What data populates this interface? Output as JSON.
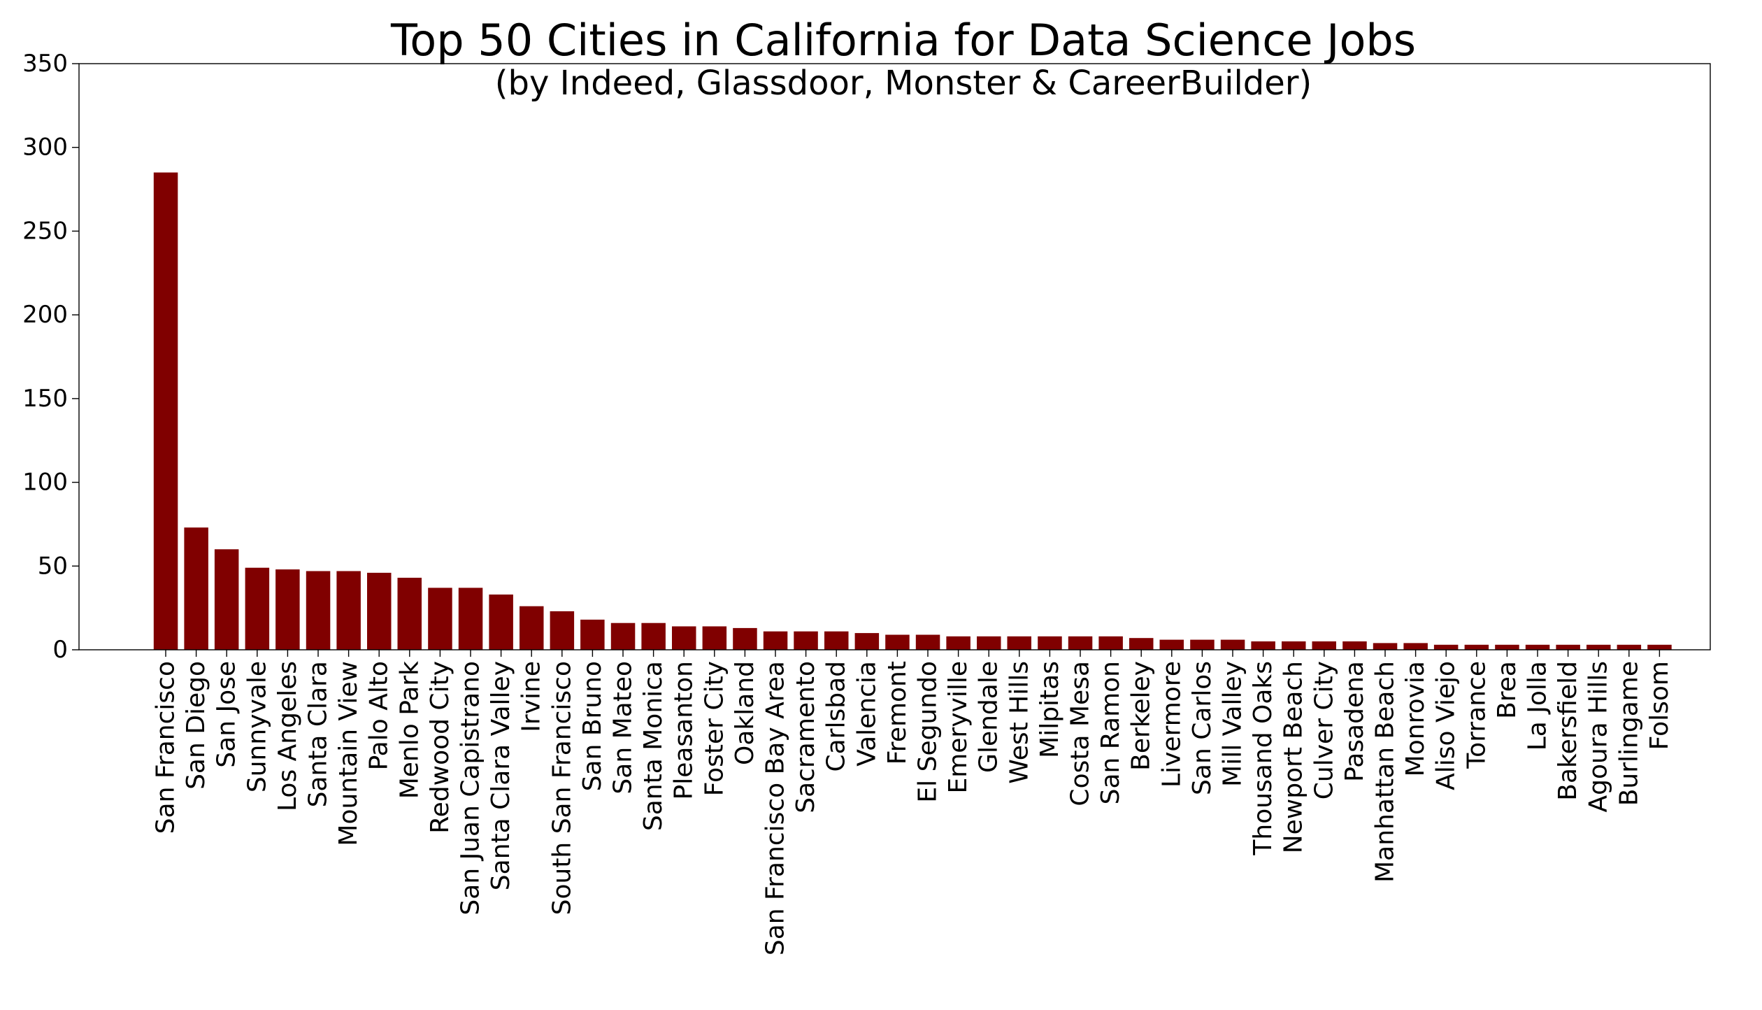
{
  "chart_data": {
    "type": "bar",
    "title": "Top 50 Cities in California for Data Science Jobs",
    "subtitle": "(by Indeed, Glassdoor, Monster & CareerBuilder)",
    "xlabel": "",
    "ylabel": "",
    "ylim": [
      0,
      350
    ],
    "yticks": [
      0,
      50,
      100,
      150,
      200,
      250,
      300,
      350
    ],
    "grid": false,
    "bar_color": "#800000",
    "categories": [
      "San Francisco",
      "San Diego",
      "San Jose",
      "Sunnyvale",
      "Los Angeles",
      "Santa Clara",
      "Mountain View",
      "Palo Alto",
      "Menlo Park",
      "Redwood City",
      "San Juan Capistrano",
      "Santa Clara Valley",
      "Irvine",
      "South San Francisco",
      "San Bruno",
      "San Mateo",
      "Santa Monica",
      "Pleasanton",
      "Foster City",
      "Oakland",
      "San Francisco Bay Area",
      "Sacramento",
      "Carlsbad",
      "Valencia",
      "Fremont",
      "El Segundo",
      "Emeryville",
      "Glendale",
      "West Hills",
      "Milpitas",
      "Costa Mesa",
      "San Ramon",
      "Berkeley",
      "Livermore",
      "San Carlos",
      "Mill Valley",
      "Thousand Oaks",
      "Newport Beach",
      "Culver City",
      "Pasadena",
      "Manhattan Beach",
      "Monrovia",
      "Aliso Viejo",
      "Torrance",
      "Brea",
      "La Jolla",
      "Bakersfield",
      "Agoura Hills",
      "Burlingame",
      "Folsom"
    ],
    "values": [
      285,
      73,
      60,
      49,
      48,
      47,
      47,
      46,
      43,
      37,
      37,
      33,
      26,
      23,
      18,
      16,
      16,
      14,
      14,
      13,
      11,
      11,
      11,
      10,
      9,
      9,
      8,
      8,
      8,
      8,
      8,
      8,
      7,
      6,
      6,
      6,
      5,
      5,
      5,
      5,
      4,
      4,
      3,
      3,
      3,
      3,
      3,
      3,
      3,
      3
    ]
  }
}
